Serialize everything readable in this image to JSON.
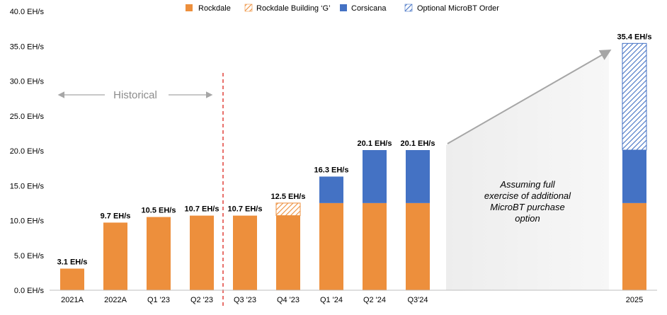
{
  "chart_data": {
    "type": "bar",
    "stacked": true,
    "categories": [
      "2021A",
      "2022A",
      "Q1 '23",
      "Q2 '23",
      "Q3 '23",
      "Q4 '23",
      "Q1 '24",
      "Q2 '24",
      "Q3'24",
      "2025"
    ],
    "series": [
      {
        "name": "Rockdale",
        "color": "#ed8f3c",
        "pattern": "solid",
        "values": [
          3.1,
          9.7,
          10.5,
          10.7,
          10.7,
          10.7,
          12.5,
          12.5,
          12.5,
          12.5
        ]
      },
      {
        "name": "Rockdale Building ‘G’",
        "color": "#ed8f3c",
        "pattern": "hatched",
        "values": [
          0,
          0,
          0,
          0,
          0,
          1.8,
          0,
          0,
          0,
          0
        ]
      },
      {
        "name": "Corsicana",
        "color": "#4472c4",
        "pattern": "solid",
        "values": [
          0,
          0,
          0,
          0,
          0,
          0,
          3.8,
          7.6,
          7.6,
          7.6
        ]
      },
      {
        "name": "Optional MicroBT Order",
        "color": "#4472c4",
        "pattern": "hatched",
        "values": [
          0,
          0,
          0,
          0,
          0,
          0,
          0,
          0,
          0,
          15.3
        ]
      }
    ],
    "data_labels": [
      "3.1 EH/s",
      "9.7 EH/s",
      "10.5 EH/s",
      "10.7 EH/s",
      "10.7 EH/s",
      "12.5 EH/s",
      "16.3 EH/s",
      "20.1 EH/s",
      "20.1 EH/s",
      "35.4 EH/s"
    ],
    "ylim": [
      0,
      40
    ],
    "y_ticks": [
      "0.0 EH/s",
      "5.0 EH/s",
      "10.0 EH/s",
      "15.0 EH/s",
      "20.0 EH/s",
      "25.0 EH/s",
      "30.0 EH/s",
      "35.0 EH/s",
      "40.0 EH/s"
    ],
    "grid": false,
    "legend_position": "top",
    "annotations": {
      "historical": "Historical",
      "assumption": [
        "Assuming full",
        "exercise of additional",
        "MicroBT purchase",
        "option"
      ]
    },
    "divider_color": "#e0413a"
  }
}
